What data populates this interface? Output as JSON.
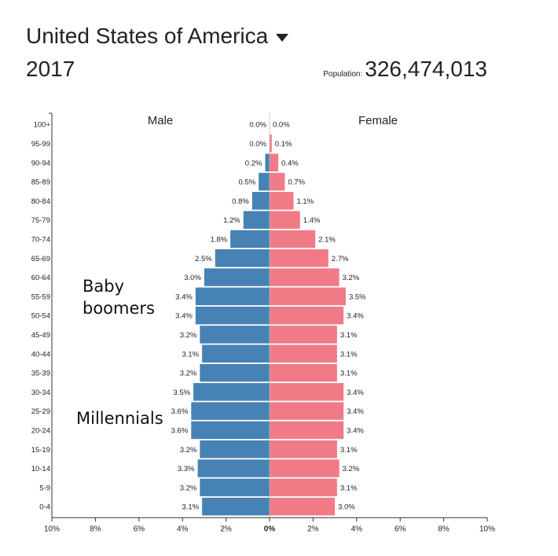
{
  "header": {
    "country": "United States of America",
    "year": "2017",
    "population_label": "Population:",
    "population_value": "326,474,013"
  },
  "annotations": {
    "baby_boomers": "Baby boomers",
    "millennials": "Millennials"
  },
  "colors": {
    "male": "#4682b4",
    "female": "#f07b87"
  },
  "icons": {
    "country_dropdown": "triangle-down-icon"
  },
  "chart_data": {
    "type": "bar",
    "orientation": "horizontal",
    "categories": [
      "100+",
      "95-99",
      "90-94",
      "85-89",
      "80-84",
      "75-79",
      "70-74",
      "65-69",
      "60-64",
      "55-59",
      "50-54",
      "45-49",
      "40-44",
      "35-39",
      "30-34",
      "25-29",
      "20-24",
      "15-19",
      "10-14",
      "5-9",
      "0-4"
    ],
    "series": [
      {
        "name": "Male",
        "values": [
          0.0,
          0.0,
          0.2,
          0.5,
          0.8,
          1.2,
          1.8,
          2.5,
          3.0,
          3.4,
          3.4,
          3.2,
          3.1,
          3.2,
          3.5,
          3.6,
          3.6,
          3.2,
          3.3,
          3.2,
          3.1
        ]
      },
      {
        "name": "Female",
        "values": [
          0.0,
          0.1,
          0.4,
          0.7,
          1.1,
          1.4,
          2.1,
          2.7,
          3.2,
          3.5,
          3.4,
          3.1,
          3.1,
          3.1,
          3.4,
          3.4,
          3.4,
          3.1,
          3.2,
          3.1,
          3.0
        ]
      }
    ],
    "value_labels_male": [
      "0.0%",
      "0.0%",
      "0.2%",
      "0.5%",
      "0.8%",
      "1.2%",
      "1.8%",
      "2.5%",
      "3.0%",
      "3.4%",
      "3.4%",
      "3.2%",
      "3.1%",
      "3.2%",
      "3.5%",
      "3.6%",
      "3.6%",
      "3.2%",
      "3.3%",
      "3.2%",
      "3.1%"
    ],
    "value_labels_female": [
      "0.0%",
      "0.1%",
      "0.4%",
      "0.7%",
      "1.1%",
      "1.4%",
      "2.1%",
      "2.7%",
      "3.2%",
      "3.5%",
      "3.4%",
      "3.1%",
      "3.1%",
      "3.1%",
      "3.4%",
      "3.4%",
      "3.4%",
      "3.1%",
      "3.2%",
      "3.1%",
      "3.0%"
    ],
    "xticks": [
      "10%",
      "8%",
      "6%",
      "4%",
      "2%",
      "0%",
      "2%",
      "4%",
      "6%",
      "8%",
      "10%"
    ],
    "xlim": [
      -10,
      10
    ],
    "grid": false,
    "legend": "top"
  }
}
